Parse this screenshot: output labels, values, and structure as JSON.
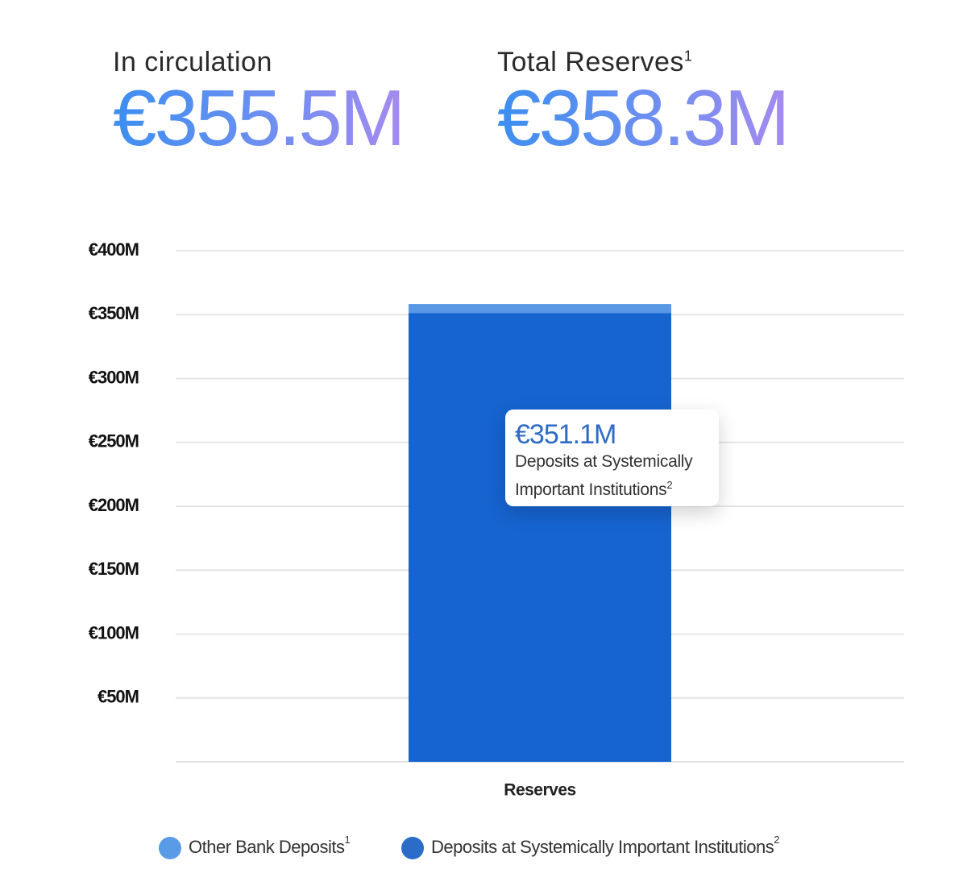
{
  "summary": [
    {
      "label": "In circulation",
      "value_label": "€355.5M"
    },
    {
      "label": "Total Reserves",
      "footnote": "1",
      "value_label": "€358.3M"
    }
  ],
  "chart_data": {
    "type": "stacked_bar",
    "categories": [
      "Reserves"
    ],
    "series": [
      {
        "name": "Deposits at Systemically Important Institutions",
        "footnote": "2",
        "color": "#1664d0",
        "values": [
          351.1
        ],
        "value_labels": [
          "€351.1M"
        ]
      },
      {
        "name": "Other Bank Deposits",
        "footnote": "1",
        "color": "#5a98e6",
        "values": [
          7.2
        ]
      }
    ],
    "ylim": [
      0,
      400
    ],
    "yticks": [
      {
        "value": 50,
        "label": "€50M"
      },
      {
        "value": 100,
        "label": "€100M"
      },
      {
        "value": 150,
        "label": "€150M"
      },
      {
        "value": 200,
        "label": "€200M"
      },
      {
        "value": 250,
        "label": "€250M"
      },
      {
        "value": 300,
        "label": "€300M"
      },
      {
        "value": 350,
        "label": "€350M"
      },
      {
        "value": 400,
        "label": "€400M"
      }
    ],
    "grid": true
  }
}
